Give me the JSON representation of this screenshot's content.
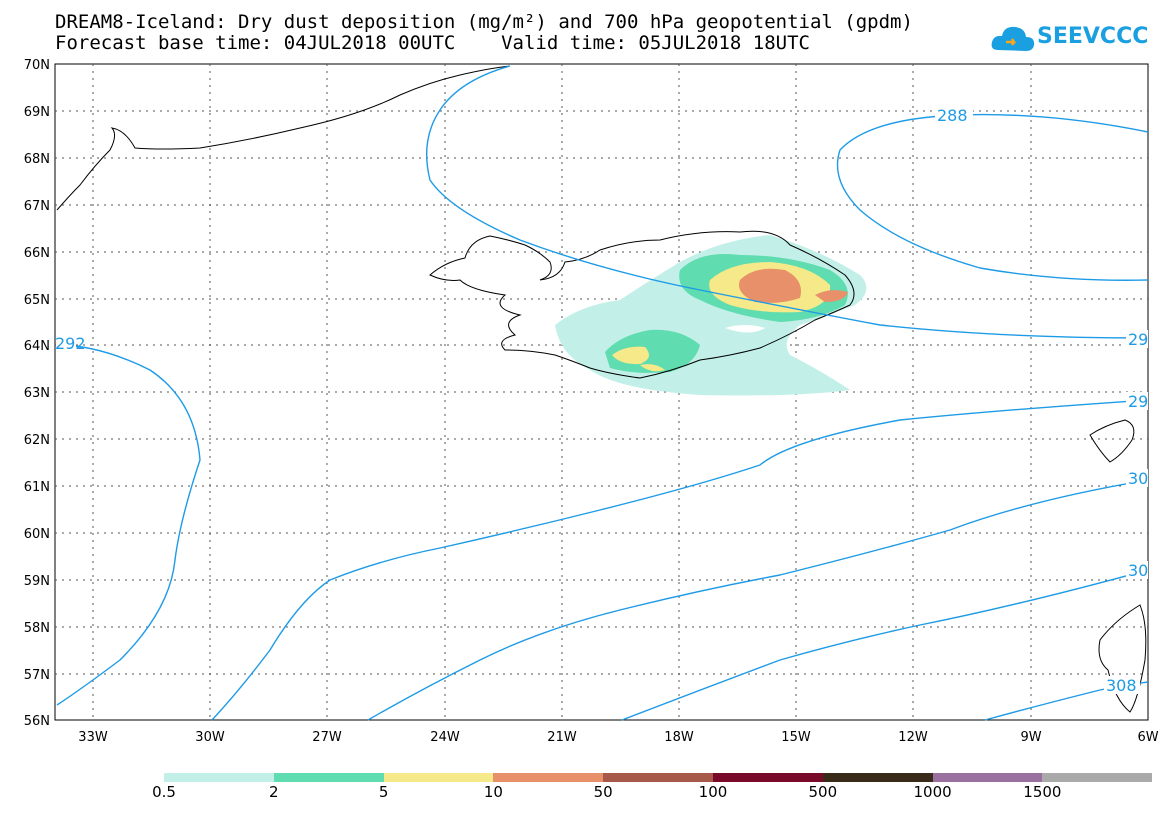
{
  "header": {
    "line1": "DREAM8-Iceland: Dry dust deposition (mg/m²) and 700 hPa geopotential (gpdm)",
    "line2": "Forecast base time: 04JUL2018 00UTC    Valid time: 05JUL2018 18UTC"
  },
  "logo": {
    "text": "SEEVCCC",
    "icon": "cloud-icon",
    "color": "#1a9fe0"
  },
  "axes": {
    "lat_labels": [
      "70N",
      "69N",
      "68N",
      "67N",
      "66N",
      "65N",
      "64N",
      "63N",
      "62N",
      "61N",
      "60N",
      "59N",
      "58N",
      "57N",
      "56N"
    ],
    "lon_labels": [
      "33W",
      "30W",
      "27W",
      "24W",
      "21W",
      "18W",
      "15W",
      "12W",
      "9W",
      "6W"
    ]
  },
  "contours": {
    "labels": [
      "288",
      "292",
      "29",
      "29",
      "30",
      "30",
      "308"
    ],
    "color": "#1e9be6"
  },
  "colorbar": {
    "colors": [
      "#c2f0e8",
      "#5fdcb0",
      "#f5e98a",
      "#e8906a",
      "#a85a4a",
      "#7a0a2a",
      "#3a2a1a",
      "#9a70a0",
      "#aaaaaa"
    ],
    "labels": [
      "0.5",
      "2",
      "5",
      "10",
      "50",
      "100",
      "500",
      "1000",
      "1500"
    ]
  }
}
